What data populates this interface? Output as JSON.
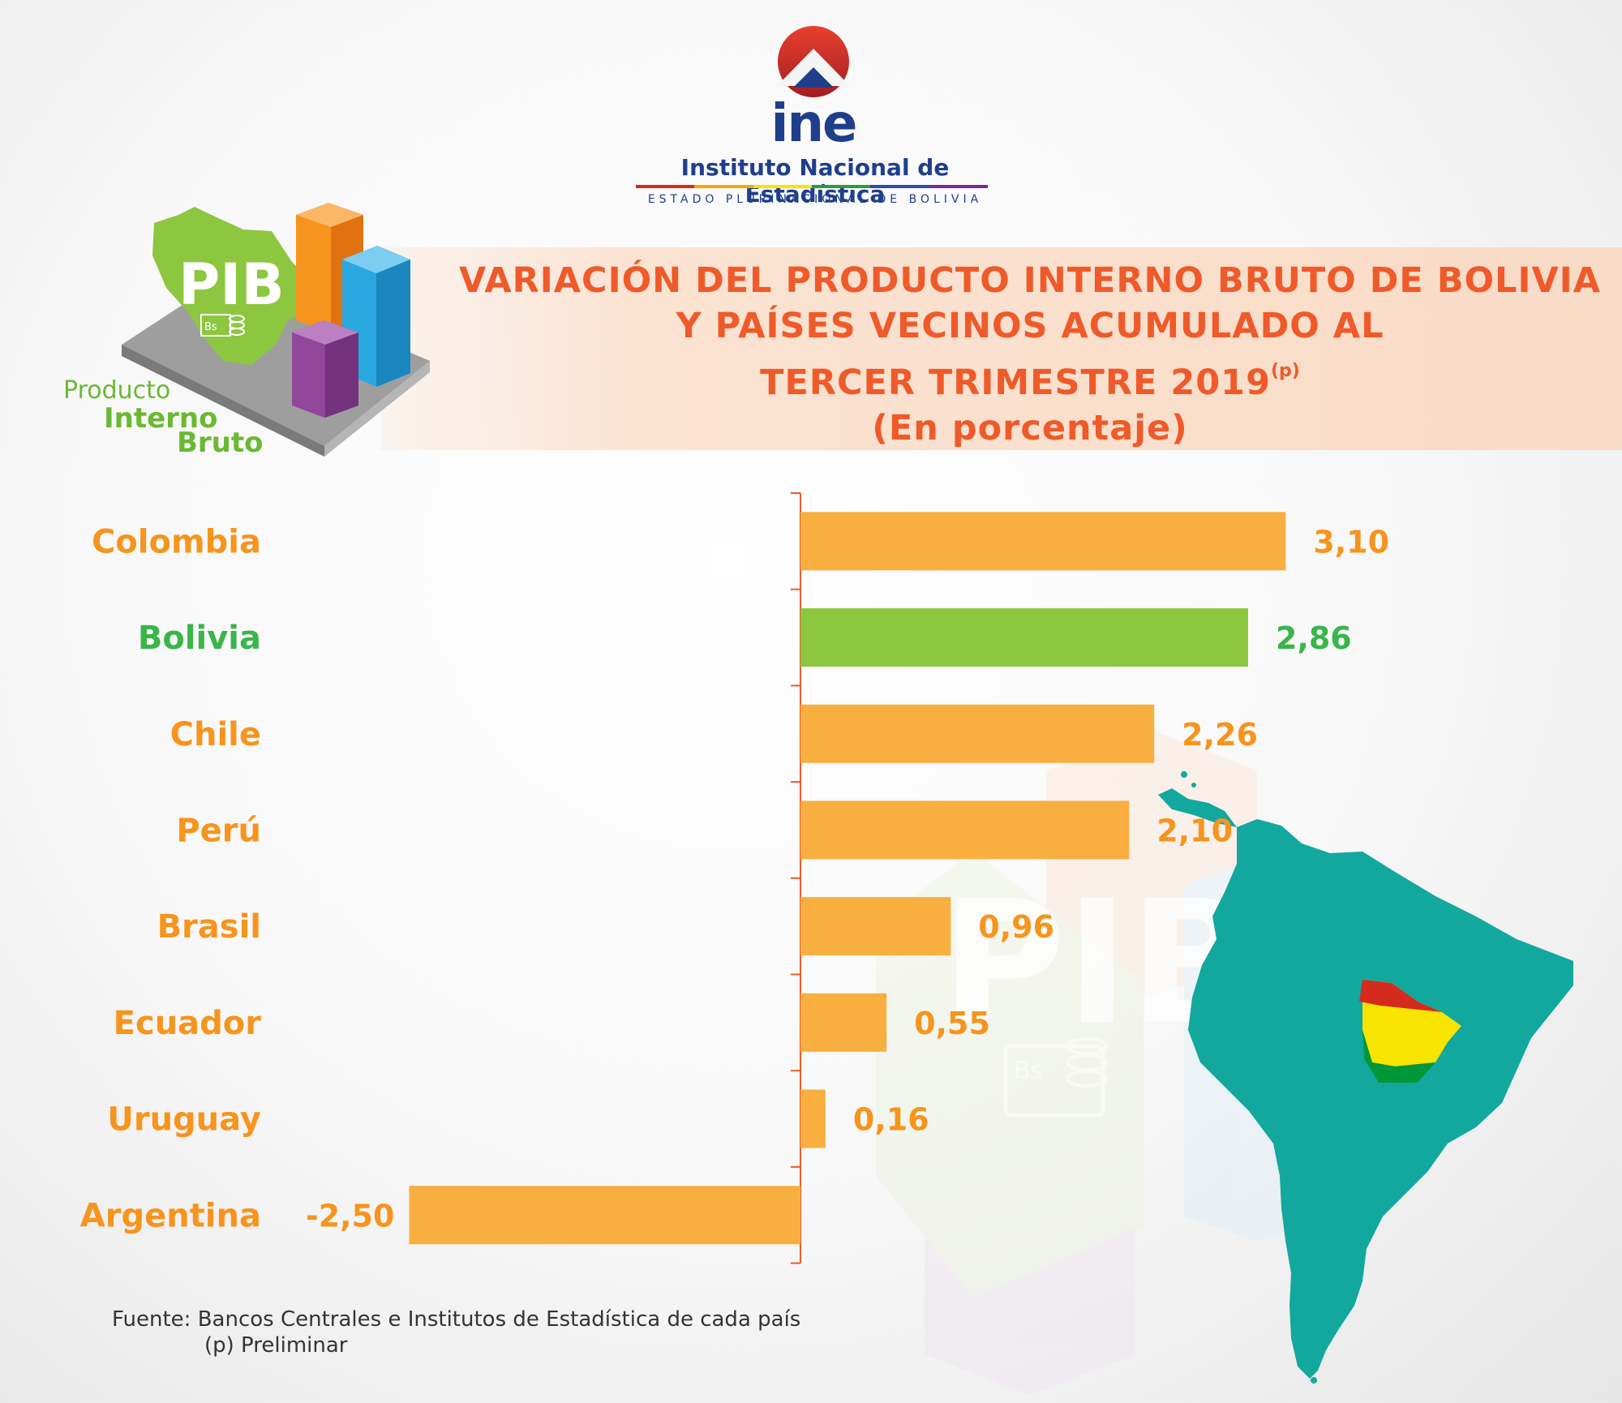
{
  "header": {
    "logo_text": "ine",
    "institution": "Instituto Nacional de Estadística",
    "subtitle": "ESTADO PLURINACIONAL DE BOLIVIA"
  },
  "icon": {
    "pib": "PIB",
    "bs": "Bs",
    "caption_1": "Producto",
    "caption_2": "Interno",
    "caption_3": "Bruto"
  },
  "title": {
    "line1": "VARIACIÓN DEL PRODUCTO INTERNO BRUTO DE BOLIVIA",
    "line2": "Y PAÍSES VECINOS ACUMULADO AL",
    "line3": "TERCER TRIMESTRE 2019",
    "line3_mark": "(p)",
    "line4": "(En porcentaje)"
  },
  "watermark": {
    "pib": "PIB",
    "bs": "Bs"
  },
  "chart_data": {
    "type": "bar",
    "orientation": "horizontal",
    "categories": [
      "Colombia",
      "Bolivia",
      "Chile",
      "Perú",
      "Brasil",
      "Ecuador",
      "Uruguay",
      "Argentina"
    ],
    "values": [
      3.1,
      2.86,
      2.26,
      2.1,
      0.96,
      0.55,
      0.16,
      -2.5
    ],
    "value_labels": [
      "3,10",
      "2,86",
      "2,26",
      "2,10",
      "0,96",
      "0,55",
      "0,16",
      "-2,50"
    ],
    "colors": [
      "#f9ae40",
      "#8dc63f",
      "#f9ae40",
      "#f9ae40",
      "#f9ae40",
      "#f9ae40",
      "#f9ae40",
      "#f9ae40"
    ],
    "label_colors": [
      "#f7941d",
      "#39b54a",
      "#f7941d",
      "#f7941d",
      "#f7941d",
      "#f7941d",
      "#f7941d",
      "#f7941d"
    ],
    "axis_color": "#ef5a2a",
    "grid": false
  },
  "source": {
    "line1": "Fuente: Bancos Centrales e Institutos de Estadística de cada país",
    "line2": "(p) Preliminar"
  }
}
